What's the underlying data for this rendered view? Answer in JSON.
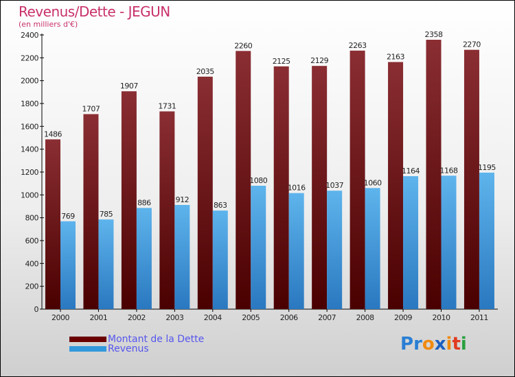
{
  "chart_data": {
    "type": "bar",
    "title": "Revenus/Dette - JEGUN",
    "subtitle": "(en milliers d'€)",
    "categories": [
      "2000",
      "2001",
      "2002",
      "2003",
      "2004",
      "2005",
      "2006",
      "2007",
      "2008",
      "2009",
      "2010",
      "2011"
    ],
    "series": [
      {
        "name": "Montant de la Dette",
        "color": "#7a1c1e",
        "values": [
          1486,
          1707,
          1907,
          1731,
          2035,
          2260,
          2125,
          2129,
          2263,
          2163,
          2358,
          2270
        ]
      },
      {
        "name": "Revenus",
        "color": "#3d9de0",
        "values": [
          769,
          785,
          886,
          912,
          863,
          1080,
          1016,
          1037,
          1060,
          1164,
          1168,
          1195
        ]
      }
    ],
    "ylim": [
      0,
      2400
    ],
    "yticks": [
      0,
      200,
      400,
      600,
      800,
      1000,
      1200,
      1400,
      1600,
      1800,
      2000,
      2200,
      2400
    ],
    "legend": "bottom-left",
    "grid": false
  },
  "logo": {
    "text": "Proxiti",
    "letters": [
      [
        "P",
        "#2a7fd4"
      ],
      [
        "r",
        "#2a7fd4"
      ],
      [
        "o",
        "#f08a10"
      ],
      [
        "x",
        "#1b5fc0"
      ],
      [
        "i",
        "#f08a10"
      ],
      [
        "t",
        "#e03a20"
      ],
      [
        "i",
        "#2aa040"
      ]
    ]
  }
}
